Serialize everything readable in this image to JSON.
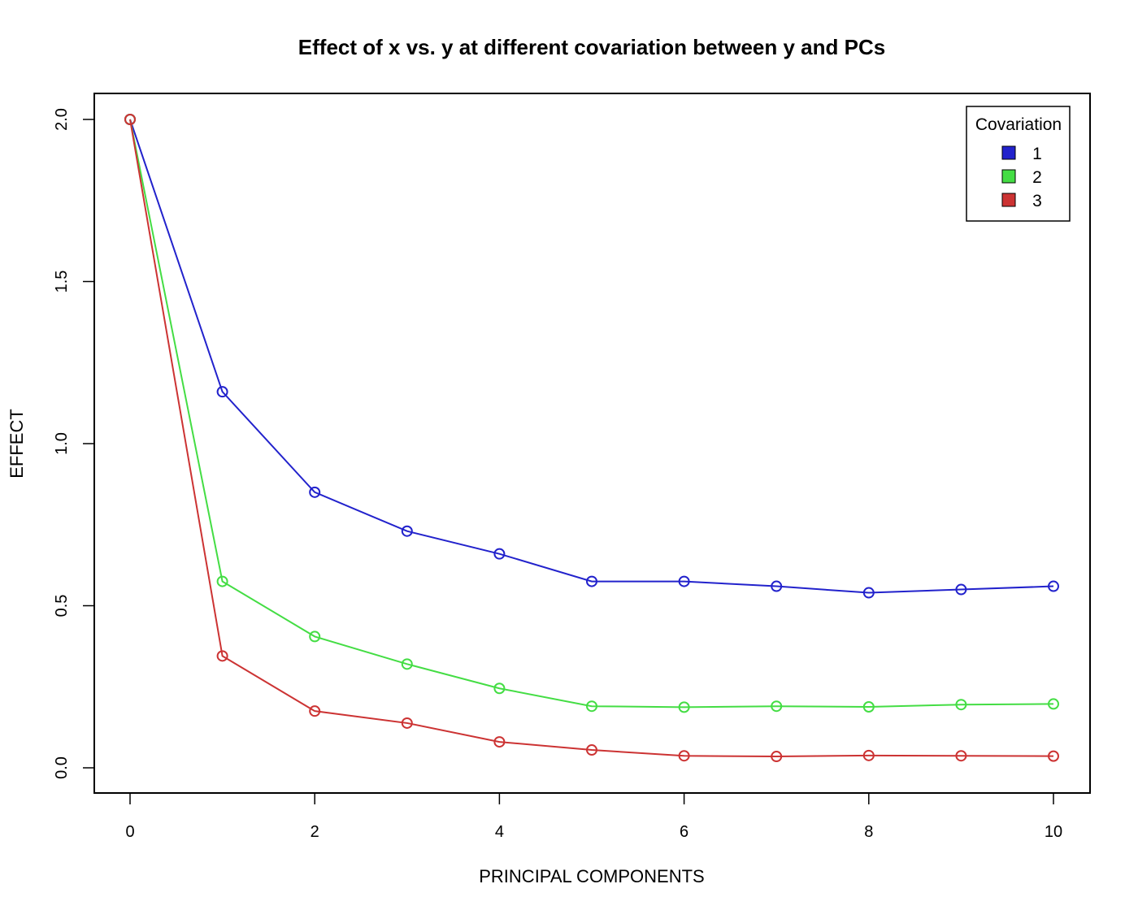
{
  "chart_data": {
    "type": "line",
    "title": "Effect of x vs. y at different covariation between y and PCs",
    "xlabel": "PRINCIPAL COMPONENTS",
    "ylabel": "EFFECT",
    "x": [
      0,
      1,
      2,
      3,
      4,
      5,
      6,
      7,
      8,
      9,
      10
    ],
    "xlim": [
      0,
      10
    ],
    "ylim": [
      0,
      2
    ],
    "xticks": [
      "0",
      "2",
      "4",
      "6",
      "8",
      "10"
    ],
    "yticks": [
      "0.0",
      "0.5",
      "1.0",
      "1.5",
      "2.0"
    ],
    "grid": false,
    "legend": {
      "title": "Covariation",
      "position": "top-right"
    },
    "series": [
      {
        "name": "1",
        "color": "#2222cc",
        "values": [
          2.0,
          1.16,
          0.85,
          0.73,
          0.66,
          0.575,
          0.575,
          0.56,
          0.54,
          0.55,
          0.56
        ]
      },
      {
        "name": "2",
        "color": "#44dd44",
        "values": [
          2.0,
          0.575,
          0.405,
          0.32,
          0.245,
          0.19,
          0.187,
          0.19,
          0.188,
          0.195,
          0.197
        ]
      },
      {
        "name": "3",
        "color": "#cc3333",
        "values": [
          2.0,
          0.345,
          0.175,
          0.138,
          0.08,
          0.055,
          0.037,
          0.035,
          0.038,
          0.037,
          0.036
        ]
      }
    ]
  }
}
